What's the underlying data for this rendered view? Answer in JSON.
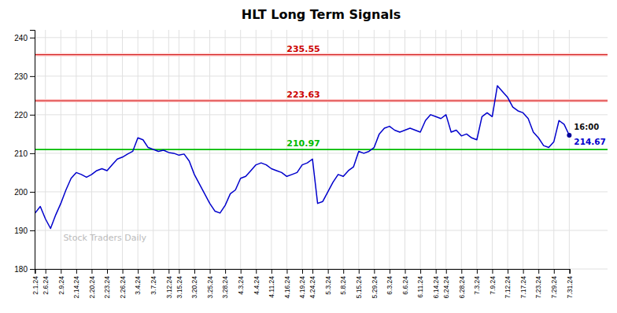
{
  "chart_data": {
    "type": "line",
    "title": "HLT Long Term Signals",
    "color": "#0000cc",
    "grid": true,
    "ylim": [
      180,
      242
    ],
    "yticks": [
      180,
      190,
      200,
      210,
      220,
      230,
      240
    ],
    "categories": [
      "2.1.24",
      null,
      "2.6.24",
      null,
      null,
      "2.9.24",
      null,
      null,
      "2.14.24",
      null,
      null,
      "2.20.24",
      null,
      null,
      "2.23.24",
      null,
      null,
      "2.26.24",
      null,
      null,
      "3.4.24",
      null,
      null,
      "3.7.24",
      null,
      null,
      "3.12.24",
      null,
      "3.15.24",
      null,
      null,
      "3.20.24",
      null,
      null,
      "3.25.24",
      null,
      null,
      "3.28.24",
      null,
      null,
      "4.3.24",
      null,
      null,
      "4.4.24",
      null,
      null,
      "4.11.24",
      null,
      null,
      "4.16.24",
      null,
      null,
      "4.19.24",
      null,
      "4.24.24",
      null,
      null,
      "5.3.24",
      null,
      null,
      "5.8.24",
      null,
      null,
      "5.15.24",
      null,
      null,
      "5.29.24",
      null,
      null,
      "6.3.24",
      null,
      null,
      "6.6.24",
      null,
      null,
      "6.11.24",
      null,
      null,
      "6.14.24",
      null,
      "6.24.24",
      null,
      null,
      "6.28.24",
      null,
      null,
      "7.3.24",
      null,
      null,
      "7.9.24",
      null,
      null,
      "7.12.24",
      null,
      null,
      "7.17.24",
      null,
      null,
      "7.23.24",
      null,
      null,
      "7.29.24",
      null,
      null,
      "7.31.24"
    ],
    "values": [
      194.5,
      196.2,
      193.0,
      190.5,
      194.0,
      197.0,
      200.5,
      203.5,
      205.0,
      204.5,
      203.8,
      204.5,
      205.5,
      206.0,
      205.5,
      207.0,
      208.5,
      209.0,
      209.8,
      210.5,
      214.0,
      213.5,
      211.5,
      211.0,
      210.5,
      210.8,
      210.2,
      210.0,
      209.5,
      209.8,
      208.0,
      204.5,
      202.0,
      199.5,
      197.0,
      195.0,
      194.5,
      196.5,
      199.5,
      200.5,
      203.5,
      204.0,
      205.5,
      207.0,
      207.5,
      207.0,
      206.0,
      205.5,
      205.0,
      204.0,
      204.5,
      205.0,
      207.0,
      207.5,
      208.5,
      197.0,
      197.5,
      200.0,
      202.5,
      204.5,
      204.0,
      205.5,
      206.5,
      210.5,
      210.0,
      210.5,
      211.5,
      215.0,
      216.5,
      217.0,
      216.0,
      215.5,
      216.0,
      216.5,
      216.0,
      215.5,
      218.5,
      220.0,
      219.5,
      219.0,
      220.0,
      215.5,
      216.0,
      214.5,
      215.0,
      214.0,
      213.5,
      219.5,
      220.5,
      219.5,
      227.5,
      226.0,
      224.5,
      222.0,
      221.0,
      220.5,
      219.0,
      215.5,
      214.0,
      212.0,
      211.5,
      213.0,
      218.5,
      217.5,
      214.67
    ],
    "annotations": [
      {
        "type": "hline",
        "y": 235.55,
        "label": "235.55",
        "color": "#cc0000",
        "band_color": "#ffcccc"
      },
      {
        "type": "hline",
        "y": 223.63,
        "label": "223.63",
        "color": "#cc0000",
        "band_color": "#ffcccc"
      },
      {
        "type": "hline",
        "y": 210.97,
        "label": "210.97",
        "color": "#00bb00"
      },
      {
        "type": "point",
        "y": 214.67,
        "label": "214.67",
        "text": "16:00",
        "color": "#000099"
      },
      {
        "type": "text",
        "text": "Stock Traders Daily"
      }
    ]
  }
}
